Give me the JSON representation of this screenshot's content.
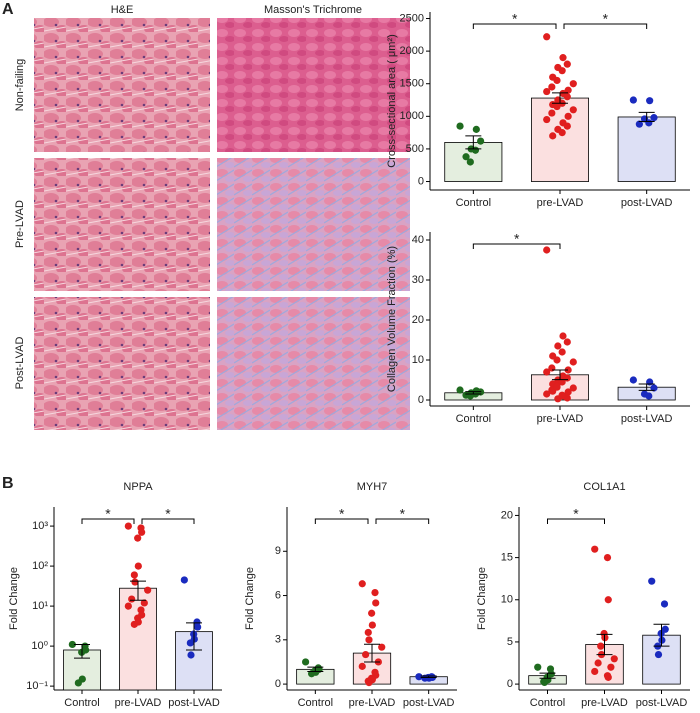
{
  "panel_labels": [
    "A",
    "B"
  ],
  "histology": {
    "columns": [
      "H&E",
      "Masson's Trichrome"
    ],
    "rows": [
      "Non-failing",
      "Pre-LVAD",
      "Post-LVAD"
    ]
  },
  "chart_data": [
    {
      "type": "bar",
      "ylabel": "Cross-sectional area ( μm²)",
      "categories": [
        "Control",
        "pre-LVAD",
        "post-LVAD"
      ],
      "values": [
        600,
        1280,
        990
      ],
      "errors": [
        100,
        80,
        70
      ],
      "colors": [
        "#e4eedf",
        "#fbe0e0",
        "#dde0f5"
      ],
      "point_colors": [
        "#1f6b1f",
        "#e01f1f",
        "#1a2bbf"
      ],
      "points": [
        [
          850,
          800,
          620,
          500,
          480,
          380,
          300
        ],
        [
          2220,
          1900,
          1800,
          1750,
          1700,
          1600,
          1550,
          1500,
          1450,
          1400,
          1380,
          1350,
          1300,
          1250,
          1200,
          1180,
          1150,
          1100,
          1050,
          1000,
          950,
          900,
          850,
          800,
          750,
          700
        ],
        [
          1250,
          1240,
          980,
          960,
          900,
          880
        ]
      ],
      "annotations": [
        {
          "text": "*",
          "categories": [
            "Control",
            "pre-LVAD"
          ]
        },
        {
          "text": "*",
          "categories": [
            "pre-LVAD",
            "post-LVAD"
          ]
        }
      ],
      "ylim": [
        -130,
        2600
      ],
      "yticks": [
        0,
        500,
        1000,
        1500,
        2000,
        2500
      ]
    },
    {
      "type": "bar",
      "ylabel": "Collagen Volume Fraction (%)",
      "categories": [
        "Control",
        "pre-LVAD",
        "post-LVAD"
      ],
      "values": [
        1.8,
        6.3,
        3.2
      ],
      "errors": [
        0.3,
        1.2,
        0.8
      ],
      "colors": [
        "#e4eedf",
        "#fbe0e0",
        "#dde0f5"
      ],
      "point_colors": [
        "#1f6b1f",
        "#e01f1f",
        "#1a2bbf"
      ],
      "points": [
        [
          2.5,
          2.3,
          2,
          1.8,
          1.5,
          1.2,
          1
        ],
        [
          37.5,
          16,
          14.5,
          13.5,
          12,
          11,
          10,
          9.5,
          8,
          7.5,
          7,
          6,
          5.5,
          5,
          4.5,
          4,
          3.5,
          3,
          2.5,
          2,
          1.5,
          1,
          0.5,
          0.3,
          1.2,
          2.2,
          3.2
        ],
        [
          5,
          4.5,
          3,
          1.5,
          1
        ]
      ],
      "annotations": [
        {
          "text": "*",
          "categories": [
            "Control",
            "pre-LVAD"
          ]
        }
      ],
      "ylim": [
        -1.5,
        42
      ],
      "yticks": [
        0,
        10,
        20,
        30,
        40
      ]
    },
    {
      "type": "bar",
      "title": "NPPA",
      "ylabel": "Fold Change",
      "log_scale": true,
      "categories": [
        "Control",
        "pre-LVAD",
        "post-LVAD"
      ],
      "values": [
        0.8,
        28,
        2.3
      ],
      "errors": [
        0.3,
        14,
        1.5
      ],
      "colors": [
        "#e4eedf",
        "#fbe0e0",
        "#dde0f5"
      ],
      "point_colors": [
        "#1f6b1f",
        "#e01f1f",
        "#1a2bbf"
      ],
      "points": [
        [
          1.1,
          1.0,
          0.8,
          0.7,
          0.15,
          0.12
        ],
        [
          1000,
          900,
          700,
          500,
          100,
          60,
          40,
          25,
          15,
          12,
          10,
          8,
          6,
          5,
          4,
          3.5
        ],
        [
          45,
          4,
          3,
          2,
          1.5,
          1.2,
          0.6
        ]
      ],
      "annotations": [
        {
          "text": "*",
          "categories": [
            "Control",
            "pre-LVAD"
          ]
        },
        {
          "text": "*",
          "categories": [
            "pre-LVAD",
            "post-LVAD"
          ]
        }
      ],
      "ylim": [
        0.08,
        3000
      ],
      "yticks": [
        {
          "value": 0.1,
          "label": "10⁻¹"
        },
        {
          "value": 1,
          "label": "10⁰"
        },
        {
          "value": 10,
          "label": "10¹"
        },
        {
          "value": 100,
          "label": "10²"
        },
        {
          "value": 1000,
          "label": "10³"
        }
      ]
    },
    {
      "type": "bar",
      "title": "MYH7",
      "ylabel": "Fold Change",
      "categories": [
        "Control",
        "pre-LVAD",
        "post-LVAD"
      ],
      "values": [
        1.0,
        2.1,
        0.5
      ],
      "errors": [
        0.15,
        0.6,
        0.05
      ],
      "colors": [
        "#e4eedf",
        "#fbe0e0",
        "#dde0f5"
      ],
      "point_colors": [
        "#1f6b1f",
        "#e01f1f",
        "#1a2bbf"
      ],
      "points": [
        [
          1.5,
          1.1,
          1.0,
          0.9,
          0.8,
          0.7
        ],
        [
          6.8,
          6.2,
          5.5,
          4.8,
          4.0,
          3.5,
          3.0,
          2.5,
          2.0,
          1.5,
          1.2,
          0.8,
          0.6,
          0.4,
          0.3,
          0.2,
          0.1
        ],
        [
          0.5,
          0.5,
          0.45,
          0.45,
          0.4,
          0.4
        ]
      ],
      "annotations": [
        {
          "text": "*",
          "categories": [
            "Control",
            "pre-LVAD"
          ]
        },
        {
          "text": "*",
          "categories": [
            "pre-LVAD",
            "post-LVAD"
          ]
        }
      ],
      "ylim": [
        -0.4,
        12
      ],
      "yticks": [
        0,
        3,
        6,
        9
      ]
    },
    {
      "type": "bar",
      "title": "COL1A1",
      "ylabel": "Fold Change",
      "categories": [
        "Control",
        "pre-LVAD",
        "post-LVAD"
      ],
      "values": [
        1.0,
        4.7,
        5.8
      ],
      "errors": [
        0.3,
        1.2,
        1.3
      ],
      "colors": [
        "#e4eedf",
        "#fbe0e0",
        "#dde0f5"
      ],
      "point_colors": [
        "#1f6b1f",
        "#e01f1f",
        "#1a2bbf"
      ],
      "points": [
        [
          2,
          1.8,
          1.2,
          0.8,
          0.5,
          0.3,
          0.2
        ],
        [
          16,
          15,
          10,
          6,
          5.5,
          4.5,
          3.5,
          3,
          2.5,
          2,
          1.5,
          1,
          0.8
        ],
        [
          12.2,
          9.5,
          6.5,
          6,
          5.2,
          4.5,
          3.5
        ]
      ],
      "annotations": [
        {
          "text": "*",
          "categories": [
            "Control",
            "pre-LVAD"
          ]
        }
      ],
      "ylim": [
        -0.7,
        21
      ],
      "yticks": [
        0,
        5,
        10,
        15,
        20
      ]
    }
  ]
}
